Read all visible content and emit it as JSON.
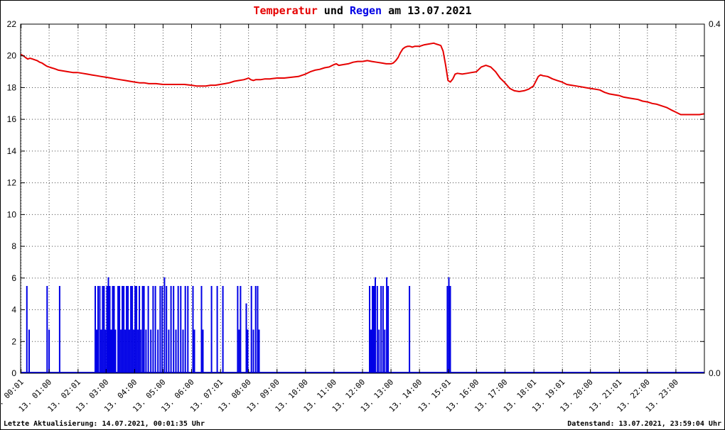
{
  "title": {
    "parts": [
      {
        "text": "Temperatur",
        "color": "#e60000"
      },
      {
        "text": " und ",
        "color": "#000000"
      },
      {
        "text": "Regen",
        "color": "#0000e6"
      },
      {
        "text": " am 13.07.2021",
        "color": "#000000"
      }
    ]
  },
  "footer": {
    "left": "Letzte Aktualisierung: 14.07.2021, 00:01:35 Uhr",
    "right": "Datenstand: 13.07.2021, 23:59:04 Uhr"
  },
  "colors": {
    "temperature": "#e60000",
    "rain": "#0000e6",
    "grid": "#4a4a4a",
    "axis": "#000000",
    "background": "#ffffff"
  },
  "chart_data": {
    "type": "line+bar",
    "title": "Temperatur und Regen am 13.07.2021",
    "grid": true,
    "x_axis": {
      "range": [
        0,
        24
      ],
      "ticks": [
        {
          "t": 0.0167,
          "label": "13. 00:01"
        },
        {
          "t": 1,
          "label": "13. 01:00"
        },
        {
          "t": 2.0167,
          "label": "13. 02:01"
        },
        {
          "t": 3,
          "label": "13. 03:00"
        },
        {
          "t": 4,
          "label": "13. 04:00"
        },
        {
          "t": 5,
          "label": "13. 05:00"
        },
        {
          "t": 6,
          "label": "13. 06:00"
        },
        {
          "t": 7.0167,
          "label": "13. 07:01"
        },
        {
          "t": 8,
          "label": "13. 08:00"
        },
        {
          "t": 9,
          "label": "13. 09:00"
        },
        {
          "t": 10,
          "label": "13. 10:00"
        },
        {
          "t": 11,
          "label": "13. 11:00"
        },
        {
          "t": 12,
          "label": "13. 12:00"
        },
        {
          "t": 13,
          "label": "13. 13:00"
        },
        {
          "t": 14,
          "label": "13. 14:00"
        },
        {
          "t": 15.0167,
          "label": "13. 15:01"
        },
        {
          "t": 16,
          "label": "13. 16:00"
        },
        {
          "t": 17,
          "label": "13. 17:00"
        },
        {
          "t": 18.0167,
          "label": "13. 18:01"
        },
        {
          "t": 19.0167,
          "label": "13. 19:01"
        },
        {
          "t": 20,
          "label": "13. 20:00"
        },
        {
          "t": 21.0167,
          "label": "13. 21:01"
        },
        {
          "t": 22,
          "label": "13. 22:00"
        },
        {
          "t": 23,
          "label": "13. 23:00"
        }
      ]
    },
    "y_left": {
      "range": [
        0,
        22
      ],
      "ticks": [
        0,
        2,
        4,
        6,
        8,
        10,
        12,
        14,
        16,
        18,
        20,
        22
      ]
    },
    "y_right": {
      "range": [
        0,
        0.4
      ],
      "ticks": [
        {
          "v": 0.4,
          "label": "0.4"
        },
        {
          "v": 0,
          "label": "0.0"
        }
      ]
    },
    "series": [
      {
        "name": "Temperatur",
        "type": "line",
        "axis": "left",
        "color": "#e60000",
        "points": [
          [
            0,
            20.1
          ],
          [
            0.1,
            20.0
          ],
          [
            0.17,
            19.9
          ],
          [
            0.25,
            19.8
          ],
          [
            0.33,
            19.85
          ],
          [
            0.42,
            19.8
          ],
          [
            0.5,
            19.75
          ],
          [
            0.58,
            19.7
          ],
          [
            0.67,
            19.6
          ],
          [
            0.75,
            19.55
          ],
          [
            0.83,
            19.45
          ],
          [
            0.92,
            19.35
          ],
          [
            1,
            19.3
          ],
          [
            1.08,
            19.25
          ],
          [
            1.17,
            19.2
          ],
          [
            1.25,
            19.15
          ],
          [
            1.33,
            19.1
          ],
          [
            1.5,
            19.05
          ],
          [
            1.67,
            19.0
          ],
          [
            1.83,
            18.95
          ],
          [
            2,
            18.95
          ],
          [
            2.17,
            18.9
          ],
          [
            2.33,
            18.85
          ],
          [
            2.5,
            18.8
          ],
          [
            2.67,
            18.75
          ],
          [
            2.83,
            18.7
          ],
          [
            3,
            18.65
          ],
          [
            3.17,
            18.6
          ],
          [
            3.33,
            18.55
          ],
          [
            3.5,
            18.5
          ],
          [
            3.67,
            18.45
          ],
          [
            3.83,
            18.4
          ],
          [
            4,
            18.35
          ],
          [
            4.17,
            18.3
          ],
          [
            4.33,
            18.3
          ],
          [
            4.5,
            18.25
          ],
          [
            4.75,
            18.25
          ],
          [
            5,
            18.2
          ],
          [
            5.25,
            18.2
          ],
          [
            5.5,
            18.2
          ],
          [
            5.75,
            18.2
          ],
          [
            6,
            18.15
          ],
          [
            6.17,
            18.1
          ],
          [
            6.33,
            18.1
          ],
          [
            6.5,
            18.1
          ],
          [
            6.67,
            18.15
          ],
          [
            6.83,
            18.15
          ],
          [
            7,
            18.2
          ],
          [
            7.17,
            18.25
          ],
          [
            7.33,
            18.3
          ],
          [
            7.5,
            18.4
          ],
          [
            7.67,
            18.45
          ],
          [
            7.83,
            18.5
          ],
          [
            7.92,
            18.55
          ],
          [
            8,
            18.6
          ],
          [
            8.08,
            18.5
          ],
          [
            8.17,
            18.45
          ],
          [
            8.25,
            18.5
          ],
          [
            8.42,
            18.5
          ],
          [
            8.58,
            18.55
          ],
          [
            8.75,
            18.55
          ],
          [
            9,
            18.6
          ],
          [
            9.25,
            18.6
          ],
          [
            9.5,
            18.65
          ],
          [
            9.75,
            18.7
          ],
          [
            10,
            18.85
          ],
          [
            10.17,
            19.0
          ],
          [
            10.33,
            19.1
          ],
          [
            10.5,
            19.15
          ],
          [
            10.67,
            19.25
          ],
          [
            10.83,
            19.3
          ],
          [
            11,
            19.45
          ],
          [
            11.08,
            19.5
          ],
          [
            11.17,
            19.4
          ],
          [
            11.33,
            19.45
          ],
          [
            11.5,
            19.5
          ],
          [
            11.67,
            19.6
          ],
          [
            11.83,
            19.65
          ],
          [
            12,
            19.65
          ],
          [
            12.17,
            19.7
          ],
          [
            12.33,
            19.65
          ],
          [
            12.5,
            19.6
          ],
          [
            12.67,
            19.55
          ],
          [
            12.83,
            19.5
          ],
          [
            13,
            19.5
          ],
          [
            13.08,
            19.55
          ],
          [
            13.17,
            19.7
          ],
          [
            13.25,
            19.9
          ],
          [
            13.33,
            20.2
          ],
          [
            13.42,
            20.45
          ],
          [
            13.5,
            20.55
          ],
          [
            13.58,
            20.6
          ],
          [
            13.67,
            20.6
          ],
          [
            13.75,
            20.55
          ],
          [
            13.83,
            20.6
          ],
          [
            14,
            20.6
          ],
          [
            14.17,
            20.7
          ],
          [
            14.33,
            20.75
          ],
          [
            14.5,
            20.8
          ],
          [
            14.58,
            20.75
          ],
          [
            14.67,
            20.7
          ],
          [
            14.75,
            20.65
          ],
          [
            14.83,
            20.3
          ],
          [
            14.92,
            19.4
          ],
          [
            15,
            18.45
          ],
          [
            15.08,
            18.35
          ],
          [
            15.17,
            18.55
          ],
          [
            15.25,
            18.85
          ],
          [
            15.33,
            18.9
          ],
          [
            15.5,
            18.85
          ],
          [
            15.67,
            18.9
          ],
          [
            15.83,
            18.95
          ],
          [
            16,
            19.0
          ],
          [
            16.17,
            19.3
          ],
          [
            16.33,
            19.4
          ],
          [
            16.5,
            19.3
          ],
          [
            16.67,
            19.0
          ],
          [
            16.83,
            18.6
          ],
          [
            17,
            18.3
          ],
          [
            17.17,
            17.95
          ],
          [
            17.33,
            17.8
          ],
          [
            17.5,
            17.75
          ],
          [
            17.67,
            17.8
          ],
          [
            17.83,
            17.9
          ],
          [
            18,
            18.1
          ],
          [
            18.17,
            18.7
          ],
          [
            18.25,
            18.8
          ],
          [
            18.33,
            18.75
          ],
          [
            18.5,
            18.7
          ],
          [
            18.67,
            18.55
          ],
          [
            18.83,
            18.45
          ],
          [
            19,
            18.35
          ],
          [
            19.17,
            18.2
          ],
          [
            19.33,
            18.15
          ],
          [
            19.5,
            18.1
          ],
          [
            19.67,
            18.05
          ],
          [
            19.83,
            18.0
          ],
          [
            20,
            17.95
          ],
          [
            20.17,
            17.9
          ],
          [
            20.33,
            17.85
          ],
          [
            20.5,
            17.7
          ],
          [
            20.67,
            17.6
          ],
          [
            20.83,
            17.55
          ],
          [
            21,
            17.5
          ],
          [
            21.17,
            17.4
          ],
          [
            21.33,
            17.35
          ],
          [
            21.5,
            17.3
          ],
          [
            21.67,
            17.25
          ],
          [
            21.83,
            17.15
          ],
          [
            22,
            17.1
          ],
          [
            22.17,
            17.0
          ],
          [
            22.33,
            16.95
          ],
          [
            22.5,
            16.85
          ],
          [
            22.67,
            16.75
          ],
          [
            22.83,
            16.6
          ],
          [
            23,
            16.45
          ],
          [
            23.17,
            16.3
          ],
          [
            23.33,
            16.3
          ],
          [
            23.5,
            16.3
          ],
          [
            23.67,
            16.3
          ],
          [
            23.83,
            16.3
          ],
          [
            24,
            16.35
          ]
        ]
      },
      {
        "name": "Regen",
        "type": "bars",
        "axis": "right",
        "color": "#0000e6",
        "points": [
          [
            0.22,
            0.1
          ],
          [
            0.3,
            0.05
          ],
          [
            0.93,
            0.1
          ],
          [
            1.0,
            0.05
          ],
          [
            1.37,
            0.1
          ],
          [
            2.62,
            0.1
          ],
          [
            2.67,
            0.05
          ],
          [
            2.72,
            0.1
          ],
          [
            2.78,
            0.1
          ],
          [
            2.83,
            0.05
          ],
          [
            2.88,
            0.1
          ],
          [
            2.93,
            0.1
          ],
          [
            2.98,
            0.05
          ],
          [
            3.03,
            0.1
          ],
          [
            3.08,
            0.11
          ],
          [
            3.13,
            0.1
          ],
          [
            3.18,
            0.05
          ],
          [
            3.23,
            0.1
          ],
          [
            3.28,
            0.1
          ],
          [
            3.33,
            0.05
          ],
          [
            3.42,
            0.1
          ],
          [
            3.47,
            0.1
          ],
          [
            3.52,
            0.05
          ],
          [
            3.57,
            0.1
          ],
          [
            3.62,
            0.1
          ],
          [
            3.67,
            0.05
          ],
          [
            3.72,
            0.1
          ],
          [
            3.77,
            0.1
          ],
          [
            3.82,
            0.05
          ],
          [
            3.87,
            0.1
          ],
          [
            3.92,
            0.1
          ],
          [
            3.97,
            0.05
          ],
          [
            4.02,
            0.1
          ],
          [
            4.07,
            0.1
          ],
          [
            4.12,
            0.05
          ],
          [
            4.17,
            0.1
          ],
          [
            4.22,
            0.05
          ],
          [
            4.28,
            0.1
          ],
          [
            4.33,
            0.1
          ],
          [
            4.4,
            0.05
          ],
          [
            4.48,
            0.1
          ],
          [
            4.57,
            0.05
          ],
          [
            4.65,
            0.1
          ],
          [
            4.73,
            0.1
          ],
          [
            4.82,
            0.05
          ],
          [
            4.9,
            0.1
          ],
          [
            4.97,
            0.1
          ],
          [
            5.05,
            0.11
          ],
          [
            5.12,
            0.1
          ],
          [
            5.2,
            0.05
          ],
          [
            5.28,
            0.1
          ],
          [
            5.37,
            0.1
          ],
          [
            5.45,
            0.05
          ],
          [
            5.53,
            0.1
          ],
          [
            5.62,
            0.1
          ],
          [
            5.7,
            0.05
          ],
          [
            5.78,
            0.1
          ],
          [
            5.87,
            0.1
          ],
          [
            6.05,
            0.1
          ],
          [
            6.1,
            0.05
          ],
          [
            6.35,
            0.1
          ],
          [
            6.4,
            0.05
          ],
          [
            6.7,
            0.1
          ],
          [
            6.9,
            0.1
          ],
          [
            7.1,
            0.1
          ],
          [
            7.62,
            0.1
          ],
          [
            7.67,
            0.05
          ],
          [
            7.72,
            0.1
          ],
          [
            7.92,
            0.08
          ],
          [
            7.97,
            0.05
          ],
          [
            8.1,
            0.1
          ],
          [
            8.17,
            0.05
          ],
          [
            8.25,
            0.1
          ],
          [
            8.32,
            0.1
          ],
          [
            8.37,
            0.05
          ],
          [
            12.25,
            0.1
          ],
          [
            12.3,
            0.05
          ],
          [
            12.35,
            0.1
          ],
          [
            12.4,
            0.1
          ],
          [
            12.45,
            0.11
          ],
          [
            12.52,
            0.1
          ],
          [
            12.58,
            0.05
          ],
          [
            12.65,
            0.1
          ],
          [
            12.72,
            0.1
          ],
          [
            12.78,
            0.05
          ],
          [
            12.85,
            0.11
          ],
          [
            12.9,
            0.1
          ],
          [
            13.65,
            0.1
          ],
          [
            14.98,
            0.1
          ],
          [
            15.03,
            0.11
          ],
          [
            15.08,
            0.1
          ]
        ]
      }
    ]
  }
}
